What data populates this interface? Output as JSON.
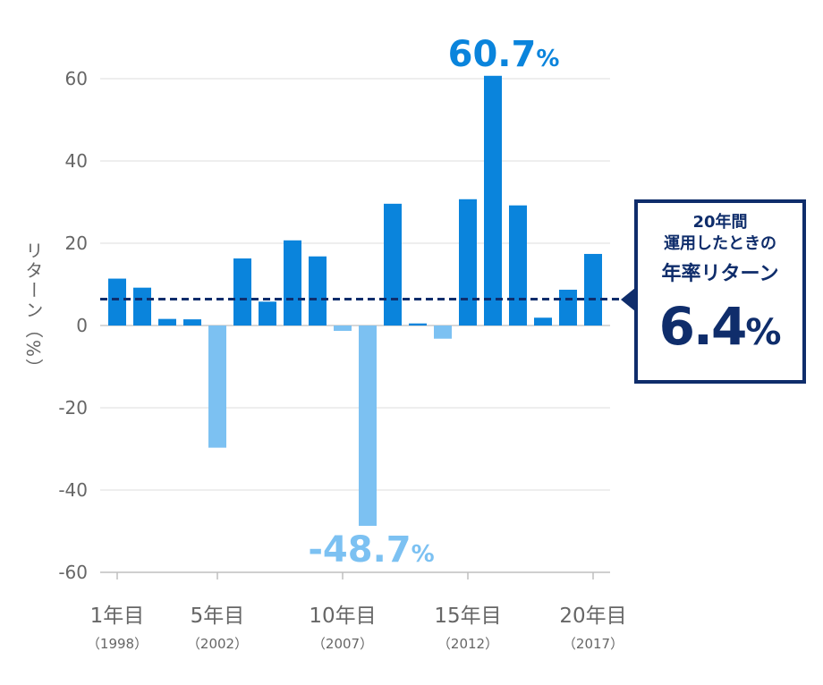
{
  "chart_data": {
    "type": "bar",
    "ylabel": "リターン（%）",
    "ylim": [
      -60,
      70
    ],
    "yticks": [
      60,
      40,
      20,
      0,
      -20,
      -40,
      -60
    ],
    "grid": true,
    "x": [
      1,
      2,
      3,
      4,
      5,
      6,
      7,
      8,
      9,
      10,
      11,
      12,
      13,
      14,
      15,
      16,
      17,
      18,
      19,
      20
    ],
    "values": [
      11.4,
      9.2,
      1.6,
      1.5,
      -29.7,
      16.3,
      5.8,
      20.7,
      16.8,
      -1.3,
      -48.7,
      29.6,
      0.5,
      -3.2,
      30.7,
      60.7,
      29.2,
      1.9,
      8.7,
      17.4
    ],
    "xticks": [
      {
        "x": 1,
        "label": "1年目",
        "sub": "（1998）"
      },
      {
        "x": 5,
        "label": "5年目",
        "sub": "（2002）"
      },
      {
        "x": 10,
        "label": "10年目",
        "sub": "（2007）"
      },
      {
        "x": 15,
        "label": "15年目",
        "sub": "（2012）"
      },
      {
        "x": 20,
        "label": "20年目",
        "sub": "（2017）"
      }
    ],
    "annotations": {
      "max": {
        "x": 16,
        "num": "60.7",
        "pct": "%"
      },
      "min": {
        "x": 11,
        "num": "-48.7",
        "pct": "%"
      }
    },
    "average_line": 6.4,
    "colors": {
      "positive": "#0a84dc",
      "negative": "#7cc1f2",
      "average": "#0f2d6b",
      "grid": "#e3e3e3",
      "axis": "#bfbfbf",
      "text": "#666666"
    }
  },
  "callout": {
    "line1": "20年間",
    "line2": "運用したときの",
    "line3": "年率リターン",
    "value": "6.4",
    "unit": "%"
  }
}
